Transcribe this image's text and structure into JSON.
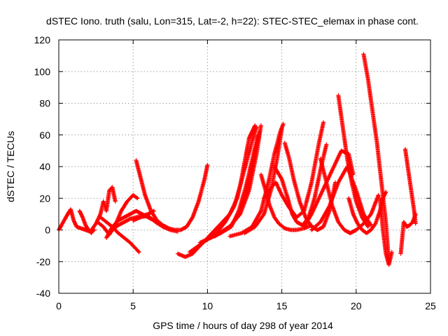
{
  "chart_data": {
    "type": "scatter",
    "title": "dSTEC Iono. truth (salu, Lon=315, Lat=-2, h=22): STEC-STEC_elemax in phase cont.",
    "xlabel": "GPS time / hours of day 298 of year 2014",
    "ylabel": "dSTEC  / TECUs",
    "xlim": [
      0,
      25
    ],
    "ylim": [
      -40,
      120
    ],
    "xticks": [
      0,
      5,
      10,
      15,
      20,
      25
    ],
    "yticks": [
      -40,
      -20,
      0,
      20,
      40,
      60,
      80,
      100,
      120
    ],
    "grid": true,
    "marker": "+",
    "color": "#ff0000",
    "series": [
      {
        "x": [
          0.0,
          0.3,
          0.6,
          0.8,
          1.0,
          1.2,
          1.5,
          1.8,
          2.1,
          2.4
        ],
        "y": [
          0,
          5,
          10,
          13,
          6,
          2,
          1,
          0,
          -1,
          0
        ]
      },
      {
        "x": [
          1.4,
          1.6,
          1.8,
          2.0,
          2.2
        ],
        "y": [
          12,
          8,
          3,
          0,
          -2
        ]
      },
      {
        "x": [
          2.2,
          2.5,
          2.8,
          3.0,
          3.2,
          3.4,
          3.6,
          3.8
        ],
        "y": [
          0,
          4,
          10,
          18,
          12,
          25,
          27,
          18
        ]
      },
      {
        "x": [
          2.6,
          3.0,
          3.4,
          3.8,
          4.2,
          4.6,
          5.0,
          5.3
        ],
        "y": [
          5,
          2,
          -3,
          3,
          12,
          18,
          22,
          20
        ]
      },
      {
        "x": [
          2.8,
          3.2,
          3.6,
          4.0,
          4.4,
          4.8,
          5.2,
          5.4
        ],
        "y": [
          8,
          5,
          2,
          -2,
          -5,
          -8,
          -12,
          -14
        ]
      },
      {
        "x": [
          3.2,
          3.6,
          4.0,
          4.4,
          4.8,
          5.2,
          5.6,
          6.0,
          6.4
        ],
        "y": [
          -5,
          2,
          6,
          8,
          10,
          12,
          10,
          8,
          6
        ]
      },
      {
        "x": [
          3.6,
          4.0,
          4.4,
          4.8,
          5.2,
          5.6,
          6.0,
          6.4
        ],
        "y": [
          0,
          3,
          5,
          7,
          8,
          9,
          10,
          12
        ]
      },
      {
        "x": [
          5.2,
          5.5,
          5.8,
          6.2,
          6.6,
          7.0,
          7.4,
          7.8,
          8.2,
          8.6,
          9.0,
          9.4,
          9.8,
          10.0
        ],
        "y": [
          44,
          33,
          22,
          12,
          6,
          3,
          1,
          0,
          0,
          2,
          8,
          18,
          32,
          41
        ]
      },
      {
        "x": [
          5.0,
          5.5,
          6.0,
          6.5,
          7.0,
          7.5,
          8.0
        ],
        "y": [
          6,
          8,
          9,
          5,
          2,
          0,
          -1
        ]
      },
      {
        "x": [
          8.0,
          8.5,
          9.0,
          9.5,
          10.0,
          10.5,
          11.0,
          11.5,
          12.0,
          12.2,
          12.4,
          12.6,
          12.8,
          13.0,
          13.2
        ],
        "y": [
          -15,
          -17,
          -15,
          -10,
          -5,
          0,
          5,
          10,
          20,
          28,
          38,
          48,
          58,
          62,
          66
        ]
      },
      {
        "x": [
          8.8,
          9.4,
          10.0,
          10.6,
          11.2,
          11.8,
          12.2,
          12.6,
          13.0,
          13.3
        ],
        "y": [
          -14,
          -10,
          -6,
          -2,
          5,
          15,
          28,
          42,
          56,
          65
        ]
      },
      {
        "x": [
          9.5,
          10.2,
          10.9,
          11.6,
          12.1,
          12.6,
          13.0,
          13.4
        ],
        "y": [
          -8,
          -5,
          -2,
          2,
          12,
          28,
          44,
          60
        ]
      },
      {
        "x": [
          10.0,
          10.8,
          11.6,
          12.2,
          12.7,
          13.1,
          13.5
        ],
        "y": [
          -6,
          -2,
          3,
          12,
          28,
          45,
          62
        ]
      },
      {
        "x": [
          10.5,
          11.5,
          12.2,
          12.8,
          13.3,
          13.6
        ],
        "y": [
          -4,
          2,
          10,
          25,
          48,
          66
        ]
      },
      {
        "x": [
          11.5,
          12.3,
          13.0,
          13.6,
          14.1,
          14.5,
          14.9,
          15.1
        ],
        "y": [
          -4,
          -2,
          2,
          12,
          30,
          48,
          62,
          67
        ]
      },
      {
        "x": [
          12.5,
          13.2,
          13.8,
          14.3,
          14.7,
          15.0
        ],
        "y": [
          -2,
          2,
          10,
          26,
          46,
          64
        ]
      },
      {
        "x": [
          13.6,
          13.9,
          14.2,
          14.5,
          14.8,
          15.2,
          15.6,
          16.0,
          16.5,
          17.0
        ],
        "y": [
          35,
          25,
          15,
          8,
          4,
          1,
          0,
          0,
          1,
          3
        ]
      },
      {
        "x": [
          13.8,
          14.2,
          14.6,
          15.0,
          15.5,
          16.0,
          16.5,
          17.0,
          17.5,
          17.8
        ],
        "y": [
          20,
          26,
          30,
          22,
          14,
          8,
          12,
          30,
          55,
          68
        ]
      },
      {
        "x": [
          14.5,
          15.0,
          15.4,
          15.7,
          16.0,
          16.4,
          16.8,
          17.2,
          17.6,
          18.0
        ],
        "y": [
          40,
          32,
          20,
          10,
          5,
          3,
          8,
          20,
          38,
          54
        ]
      },
      {
        "x": [
          15.2,
          15.5,
          15.8,
          16.2,
          16.6,
          17.0,
          17.4,
          17.8,
          18.2,
          18.6
        ],
        "y": [
          55,
          45,
          32,
          18,
          8,
          2,
          0,
          2,
          12,
          30
        ]
      },
      {
        "x": [
          16.5,
          17.0,
          17.5,
          18.0,
          18.5,
          19.0,
          19.5,
          19.8
        ],
        "y": [
          2,
          10,
          20,
          30,
          40,
          50,
          48,
          35
        ]
      },
      {
        "x": [
          17.0,
          17.6,
          18.2,
          18.8,
          19.4,
          20.0,
          20.5,
          21.0
        ],
        "y": [
          0,
          5,
          15,
          30,
          40,
          25,
          10,
          3
        ]
      },
      {
        "x": [
          17.6,
          18.0,
          18.4,
          18.8,
          19.2,
          19.6,
          20.0,
          20.5,
          21.0,
          21.5
        ],
        "y": [
          45,
          30,
          15,
          5,
          0,
          -2,
          0,
          4,
          10,
          22
        ]
      },
      {
        "x": [
          18.8,
          19.1,
          19.4,
          19.7,
          20.0,
          20.4,
          20.8
        ],
        "y": [
          85,
          65,
          45,
          30,
          18,
          8,
          2
        ]
      },
      {
        "x": [
          19.5,
          19.8,
          20.1,
          20.4,
          20.7,
          21.0,
          21.3,
          21.6,
          21.8,
          22.0
        ],
        "y": [
          20,
          10,
          4,
          0,
          -2,
          0,
          4,
          12,
          20,
          24
        ]
      },
      {
        "x": [
          20.5,
          20.8,
          21.1,
          21.4,
          21.7,
          22.0,
          22.2
        ],
        "y": [
          111,
          95,
          75,
          55,
          30,
          5,
          -20
        ]
      },
      {
        "x": [
          21.6,
          21.8,
          22.0,
          22.2,
          22.4
        ],
        "y": [
          20,
          0,
          -15,
          -22,
          -14
        ]
      },
      {
        "x": [
          23.0,
          23.2,
          23.4,
          23.6,
          23.8,
          24.0
        ],
        "y": [
          -15,
          5,
          2,
          3,
          5,
          10
        ]
      },
      {
        "x": [
          23.3,
          23.5,
          23.7,
          23.9,
          24.0
        ],
        "y": [
          51,
          38,
          25,
          12,
          4
        ]
      }
    ]
  }
}
